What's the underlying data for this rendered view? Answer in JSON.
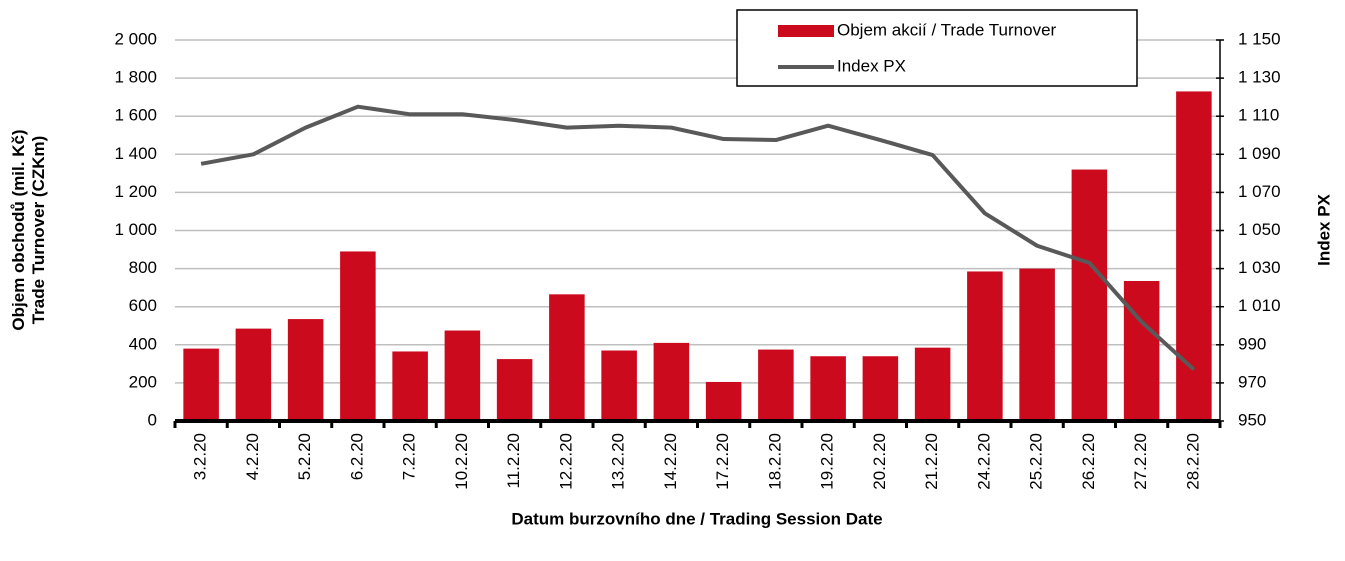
{
  "chart_data": {
    "type": "bar_line",
    "categories": [
      "3.2.20",
      "4.2.20",
      "5.2.20",
      "6.2.20",
      "7.2.20",
      "10.2.20",
      "11.2.20",
      "12.2.20",
      "13.2.20",
      "14.2.20",
      "17.2.20",
      "18.2.20",
      "19.2.20",
      "20.2.20",
      "21.2.20",
      "24.2.20",
      "25.2.20",
      "26.2.20",
      "27.2.20",
      "28.2.20"
    ],
    "series": [
      {
        "name": "Objem akcií / Trade Turnover",
        "type": "bar",
        "color": "#cc0a1e",
        "axis": "y",
        "values": [
          380,
          485,
          535,
          890,
          365,
          475,
          325,
          665,
          370,
          410,
          205,
          375,
          340,
          340,
          385,
          785,
          800,
          1320,
          735,
          1730
        ]
      },
      {
        "name": "Index PX",
        "type": "line",
        "color": "#595959",
        "axis": "y2",
        "values": [
          1085,
          1090,
          1104,
          1115,
          1111,
          1111,
          1108,
          1104,
          1105,
          1104,
          1098,
          1097.5,
          1105,
          1097.5,
          1089.6,
          1059,
          1042,
          1033,
          1002,
          977
        ]
      }
    ],
    "ylabel": "Objem obchodů (mil. Kč)\nTrade Turnover (CZKm)",
    "y2label": "Index PX",
    "xlabel": "Datum burzovního dne / Trading Session Date",
    "ylim": [
      0,
      2000
    ],
    "yticks": [
      0,
      200,
      400,
      600,
      800,
      {
        "value": 1000,
        "label": "1 000"
      },
      {
        "value": 1200,
        "label": "1 200"
      },
      {
        "value": 1400,
        "label": "1 400"
      },
      {
        "value": 1600,
        "label": "1 600"
      },
      {
        "value": 1800,
        "label": "1 800"
      },
      {
        "value": 2000,
        "label": "2 000"
      }
    ],
    "y2lim": [
      950,
      1150
    ],
    "y2ticks": [
      950,
      970,
      990,
      {
        "value": 1010,
        "label": "1 010"
      },
      {
        "value": 1030,
        "label": "1 030"
      },
      {
        "value": 1050,
        "label": "1 050"
      },
      {
        "value": 1070,
        "label": "1 070"
      },
      {
        "value": 1090,
        "label": "1 090"
      },
      {
        "value": 1110,
        "label": "1 110"
      },
      {
        "value": 1130,
        "label": "1 130"
      },
      {
        "value": 1150,
        "label": "1 150"
      }
    ],
    "grid": true,
    "legend": "top-right"
  }
}
